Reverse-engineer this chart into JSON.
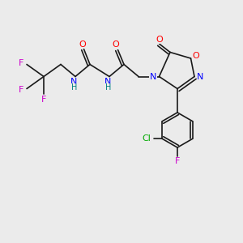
{
  "background_color": "#ebebeb",
  "bond_color": "#1a1a1a",
  "colors": {
    "O": "#ff0000",
    "N": "#0000ff",
    "F": "#cc00cc",
    "Cl": "#00aa00",
    "C": "#1a1a1a",
    "H": "#008080"
  },
  "font_size": 7.5,
  "bond_width": 1.2
}
